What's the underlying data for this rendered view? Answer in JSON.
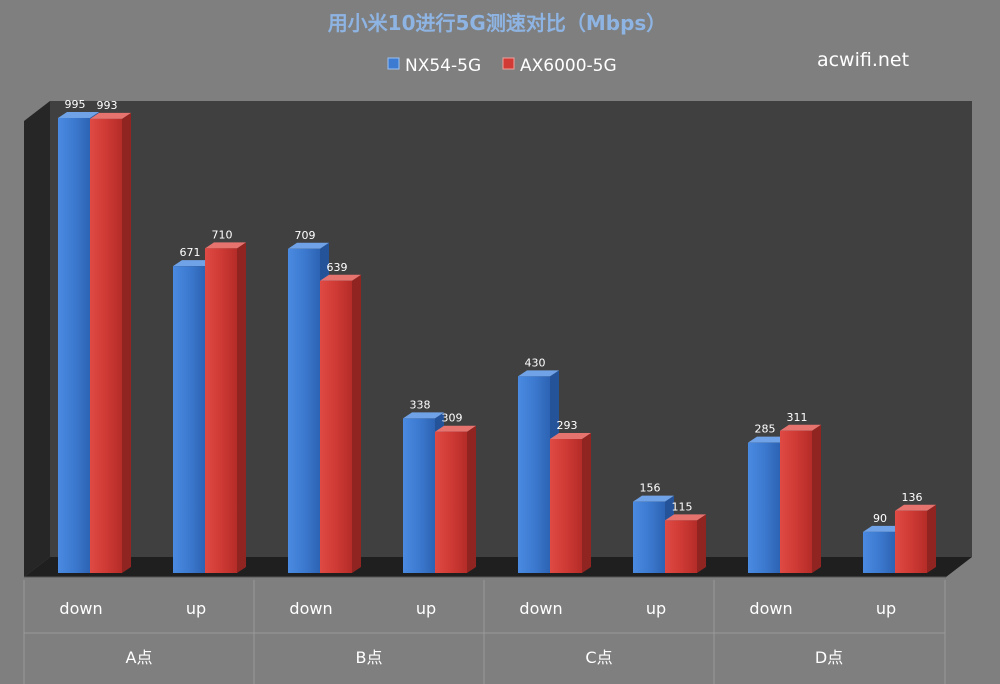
{
  "chart_data": {
    "type": "bar",
    "title": "用小米10进行5G测速对比（Mbps）",
    "watermark": "acwifi.net",
    "groups": [
      "A点",
      "B点",
      "C点",
      "D点"
    ],
    "subcategories": [
      "down",
      "up"
    ],
    "categories": [
      "A点 down",
      "A点 up",
      "B点 down",
      "B点 up",
      "C点 down",
      "C点 up",
      "D点 down",
      "D点 up"
    ],
    "series": [
      {
        "name": "NX54-5G",
        "color": "#3d7bd2",
        "values": [
          995,
          671,
          709,
          338,
          430,
          156,
          285,
          90
        ]
      },
      {
        "name": "AX6000-5G",
        "color": "#d23a36",
        "values": [
          993,
          710,
          639,
          309,
          293,
          115,
          311,
          136
        ]
      }
    ],
    "ylim": [
      0,
      1000
    ],
    "grid": false,
    "legend_position": "top",
    "style": "3d-clustered-column"
  }
}
